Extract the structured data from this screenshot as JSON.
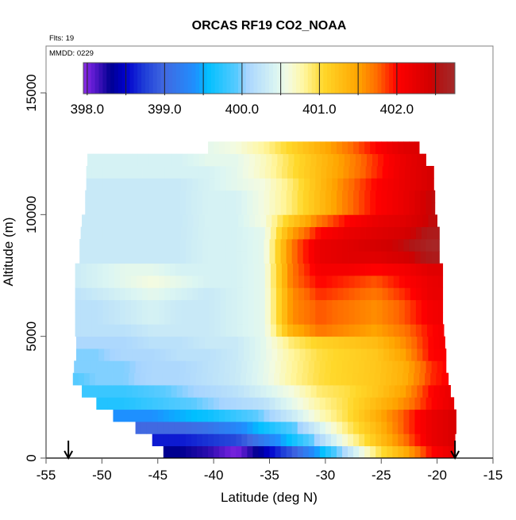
{
  "chart_data": {
    "type": "heatmap",
    "title": "ORCAS RF19 CO2_NOAA",
    "annotations": {
      "flights": "Flts: 19",
      "date": "MMDD: 0229"
    },
    "xlabel": "Latitude (deg N)",
    "ylabel": "Altitude (m)",
    "xlim": [
      -55,
      -15
    ],
    "ylim": [
      0,
      16500
    ],
    "xticks": [
      -55,
      -50,
      -45,
      -40,
      -35,
      -30,
      -25,
      -20,
      -15
    ],
    "xtick_labels": [
      "-55",
      "-50",
      "-45",
      "-40",
      "-35",
      "-30",
      "-25",
      "-20",
      "-15"
    ],
    "yticks": [
      0,
      5000,
      10000,
      15000
    ],
    "ytick_labels": [
      "0",
      "5000",
      "10000",
      "15000"
    ],
    "grid": false,
    "markers": {
      "arrow_latitudes": [
        -53,
        -18.4
      ]
    },
    "colorbar": {
      "range": [
        397.95,
        402.75
      ],
      "ticks": [
        398,
        398.5,
        399,
        399.5,
        400,
        400.5,
        401,
        401.5,
        402,
        402.5
      ],
      "labels": [
        "398.0",
        "399.0",
        "400.0",
        "401.0",
        "402.0"
      ],
      "label_values": [
        398,
        399,
        400,
        401,
        402
      ],
      "stops": [
        [
          397.95,
          "#8a2be2"
        ],
        [
          398.05,
          "#6a1ed8"
        ],
        [
          398.3,
          "#000090"
        ],
        [
          398.5,
          "#0000cd"
        ],
        [
          398.75,
          "#2040d8"
        ],
        [
          399.0,
          "#4169e1"
        ],
        [
          399.4,
          "#1e90ff"
        ],
        [
          399.55,
          "#00bfff"
        ],
        [
          399.95,
          "#5ccbff"
        ],
        [
          400.05,
          "#a6d4ff"
        ],
        [
          400.45,
          "#dcf6f2"
        ],
        [
          400.6,
          "#f4fbe0"
        ],
        [
          400.8,
          "#fff6a0"
        ],
        [
          401.05,
          "#ffd82a"
        ],
        [
          401.5,
          "#ffa500"
        ],
        [
          401.75,
          "#ff6a00"
        ],
        [
          402.0,
          "#ff0000"
        ],
        [
          402.45,
          "#d00000"
        ],
        [
          402.55,
          "#b01515"
        ],
        [
          402.75,
          "#a52a2a"
        ]
      ]
    },
    "lat_centers": [
      -53,
      -50.5,
      -48,
      -45.5,
      -43,
      -40.5,
      -38,
      -35.5,
      -33,
      -30.5,
      -28,
      -25.5,
      -23,
      -20.5,
      -18
    ],
    "altitude_bin_m": 500,
    "rows": [
      {
        "alt": 0,
        "lat_range": [
          -44.5,
          -18.4
        ],
        "values": [
          398.3,
          398.3,
          398.3,
          398.3,
          398.3,
          398.2,
          398.0,
          398.4,
          398.9,
          399.5,
          400.2,
          400.9,
          401.4,
          402.0,
          402.3
        ]
      },
      {
        "alt": 500,
        "lat_range": [
          -45.5,
          -18.4
        ],
        "values": [
          398.6,
          398.6,
          398.6,
          398.6,
          398.6,
          398.7,
          398.8,
          399.2,
          399.6,
          400.1,
          400.7,
          401.2,
          401.7,
          402.2,
          402.4
        ]
      },
      {
        "alt": 1000,
        "lat_range": [
          -47.0,
          -18.3
        ],
        "values": [
          399.0,
          399.0,
          399.0,
          399.0,
          399.0,
          399.1,
          399.3,
          399.6,
          399.9,
          400.4,
          400.9,
          401.3,
          401.8,
          402.2,
          402.4
        ]
      },
      {
        "alt": 1500,
        "lat_range": [
          -49.0,
          -18.3
        ],
        "values": [
          399.4,
          399.4,
          399.4,
          399.4,
          399.5,
          399.6,
          399.8,
          400.0,
          400.3,
          400.7,
          401.0,
          401.4,
          401.8,
          402.2,
          402.4
        ]
      },
      {
        "alt": 2000,
        "lat_range": [
          -50.5,
          -18.5
        ],
        "values": [
          399.7,
          399.7,
          399.7,
          399.8,
          399.9,
          400.0,
          400.1,
          400.2,
          400.5,
          400.8,
          401.0,
          401.3,
          401.6,
          402.0,
          402.3
        ]
      },
      {
        "alt": 2500,
        "lat_range": [
          -51.8,
          -18.8
        ],
        "values": [
          399.8,
          399.8,
          399.8,
          399.9,
          400.0,
          400.1,
          400.2,
          400.4,
          400.6,
          400.9,
          401.0,
          401.2,
          401.5,
          402.0,
          402.3
        ]
      },
      {
        "alt": 3000,
        "lat_range": [
          -52.6,
          -19.0
        ],
        "values": [
          399.9,
          400.0,
          400.0,
          400.1,
          400.1,
          400.2,
          400.3,
          400.5,
          400.8,
          401.0,
          401.1,
          401.2,
          401.4,
          401.9,
          402.1
        ]
      },
      {
        "alt": 3500,
        "lat_range": [
          -52.5,
          -19.2
        ],
        "values": [
          400.0,
          400.0,
          400.0,
          400.1,
          400.1,
          400.2,
          400.3,
          400.5,
          400.8,
          401.0,
          401.1,
          401.2,
          401.4,
          401.9,
          402.1
        ]
      },
      {
        "alt": 4000,
        "lat_range": [
          -52.3,
          -19.2
        ],
        "values": [
          400.0,
          400.0,
          400.1,
          400.1,
          400.2,
          400.2,
          400.3,
          400.5,
          400.8,
          401.0,
          401.1,
          401.2,
          401.5,
          402.0,
          402.1
        ]
      },
      {
        "alt": 4500,
        "lat_range": [
          -52.3,
          -19.3
        ],
        "values": [
          400.1,
          400.1,
          400.1,
          400.2,
          400.2,
          400.3,
          400.3,
          400.5,
          400.9,
          401.1,
          401.2,
          401.3,
          401.6,
          402.0,
          402.2
        ]
      },
      {
        "alt": 5000,
        "lat_range": [
          -52.4,
          -19.4
        ],
        "values": [
          400.2,
          400.2,
          400.2,
          400.3,
          400.3,
          400.3,
          400.4,
          400.5,
          401.4,
          401.7,
          401.6,
          401.5,
          401.7,
          402.0,
          402.2
        ]
      },
      {
        "alt": 5500,
        "lat_range": [
          -52.4,
          -19.5
        ],
        "values": [
          400.2,
          400.2,
          400.3,
          400.4,
          400.3,
          400.3,
          400.4,
          400.5,
          401.6,
          401.8,
          401.7,
          401.6,
          401.8,
          402.1,
          402.2
        ]
      },
      {
        "alt": 6000,
        "lat_range": [
          -52.4,
          -19.5
        ],
        "values": [
          400.2,
          400.2,
          400.3,
          400.4,
          400.3,
          400.3,
          400.4,
          400.5,
          401.6,
          401.8,
          401.7,
          401.6,
          401.8,
          402.1,
          402.2
        ]
      },
      {
        "alt": 6500,
        "lat_range": [
          -52.4,
          -19.5
        ],
        "values": [
          400.2,
          400.3,
          400.4,
          400.5,
          400.4,
          400.3,
          400.4,
          400.5,
          401.6,
          401.9,
          401.8,
          401.7,
          401.9,
          402.2,
          402.2
        ]
      },
      {
        "alt": 7000,
        "lat_range": [
          -52.4,
          -19.5
        ],
        "values": [
          400.3,
          400.4,
          400.5,
          400.6,
          400.5,
          400.4,
          400.4,
          400.5,
          401.7,
          402.0,
          401.9,
          401.8,
          402.0,
          402.2,
          402.3
        ]
      },
      {
        "alt": 7500,
        "lat_range": [
          -52.4,
          -19.5
        ],
        "values": [
          400.3,
          400.4,
          400.5,
          400.5,
          400.4,
          400.4,
          400.4,
          400.5,
          401.7,
          402.1,
          402.1,
          402.0,
          402.1,
          402.3,
          402.3
        ]
      },
      {
        "alt": 8000,
        "lat_range": [
          -52.0,
          -19.8
        ],
        "values": [
          400.3,
          400.3,
          400.3,
          400.3,
          400.3,
          400.4,
          400.4,
          400.5,
          401.7,
          402.2,
          402.3,
          402.3,
          402.4,
          402.6,
          402.6
        ]
      },
      {
        "alt": 8500,
        "lat_range": [
          -52.0,
          -19.8
        ],
        "values": [
          400.3,
          400.3,
          400.3,
          400.3,
          400.3,
          400.4,
          400.4,
          400.5,
          401.7,
          402.2,
          402.3,
          402.4,
          402.5,
          402.7,
          402.7
        ]
      },
      {
        "alt": 9000,
        "lat_range": [
          -51.9,
          -19.8
        ],
        "values": [
          400.3,
          400.3,
          400.3,
          400.3,
          400.3,
          400.4,
          400.4,
          400.5,
          401.5,
          402.0,
          402.2,
          402.3,
          402.4,
          402.6,
          402.6
        ]
      },
      {
        "alt": 9500,
        "lat_range": [
          -51.8,
          -20.0
        ],
        "values": [
          400.3,
          400.3,
          400.3,
          400.3,
          400.3,
          400.4,
          400.4,
          400.6,
          401.2,
          401.7,
          402.0,
          402.2,
          402.3,
          402.5,
          402.5
        ]
      },
      {
        "alt": 10000,
        "lat_range": [
          -51.5,
          -20.2
        ],
        "values": [
          400.3,
          400.3,
          400.3,
          400.3,
          400.3,
          400.4,
          400.4,
          400.6,
          400.9,
          401.3,
          401.7,
          402.0,
          402.2,
          402.5,
          402.5
        ]
      },
      {
        "alt": 10500,
        "lat_range": [
          -51.5,
          -20.2
        ],
        "values": [
          400.3,
          400.3,
          400.3,
          400.3,
          400.3,
          400.4,
          400.4,
          400.6,
          400.9,
          401.3,
          401.7,
          402.0,
          402.2,
          402.5,
          402.5
        ]
      },
      {
        "alt": 11000,
        "lat_range": [
          -51.4,
          -20.3
        ],
        "values": [
          400.3,
          400.3,
          400.3,
          400.3,
          400.3,
          400.4,
          400.5,
          400.6,
          400.9,
          401.3,
          401.7,
          402.0,
          402.2,
          402.4,
          402.4
        ]
      },
      {
        "alt": 11500,
        "lat_range": [
          -51.4,
          -20.3
        ],
        "values": [
          400.4,
          400.4,
          400.4,
          400.4,
          400.4,
          400.4,
          400.5,
          400.7,
          401.0,
          401.3,
          401.6,
          401.9,
          402.2,
          402.4,
          402.4
        ]
      },
      {
        "alt": 12000,
        "lat_range": [
          -51.3,
          -21.0
        ],
        "values": [
          400.4,
          400.4,
          400.4,
          400.4,
          400.4,
          400.5,
          400.5,
          400.7,
          401.0,
          401.3,
          401.6,
          401.9,
          402.2,
          402.4,
          402.4
        ]
      },
      {
        "alt": 12500,
        "lat_range": [
          -40.5,
          -21.6
        ],
        "values": [
          400.5,
          400.5,
          400.5,
          400.5,
          400.5,
          400.5,
          400.6,
          400.8,
          401.1,
          401.4,
          401.7,
          402.0,
          402.3,
          402.4,
          402.4
        ]
      }
    ]
  }
}
